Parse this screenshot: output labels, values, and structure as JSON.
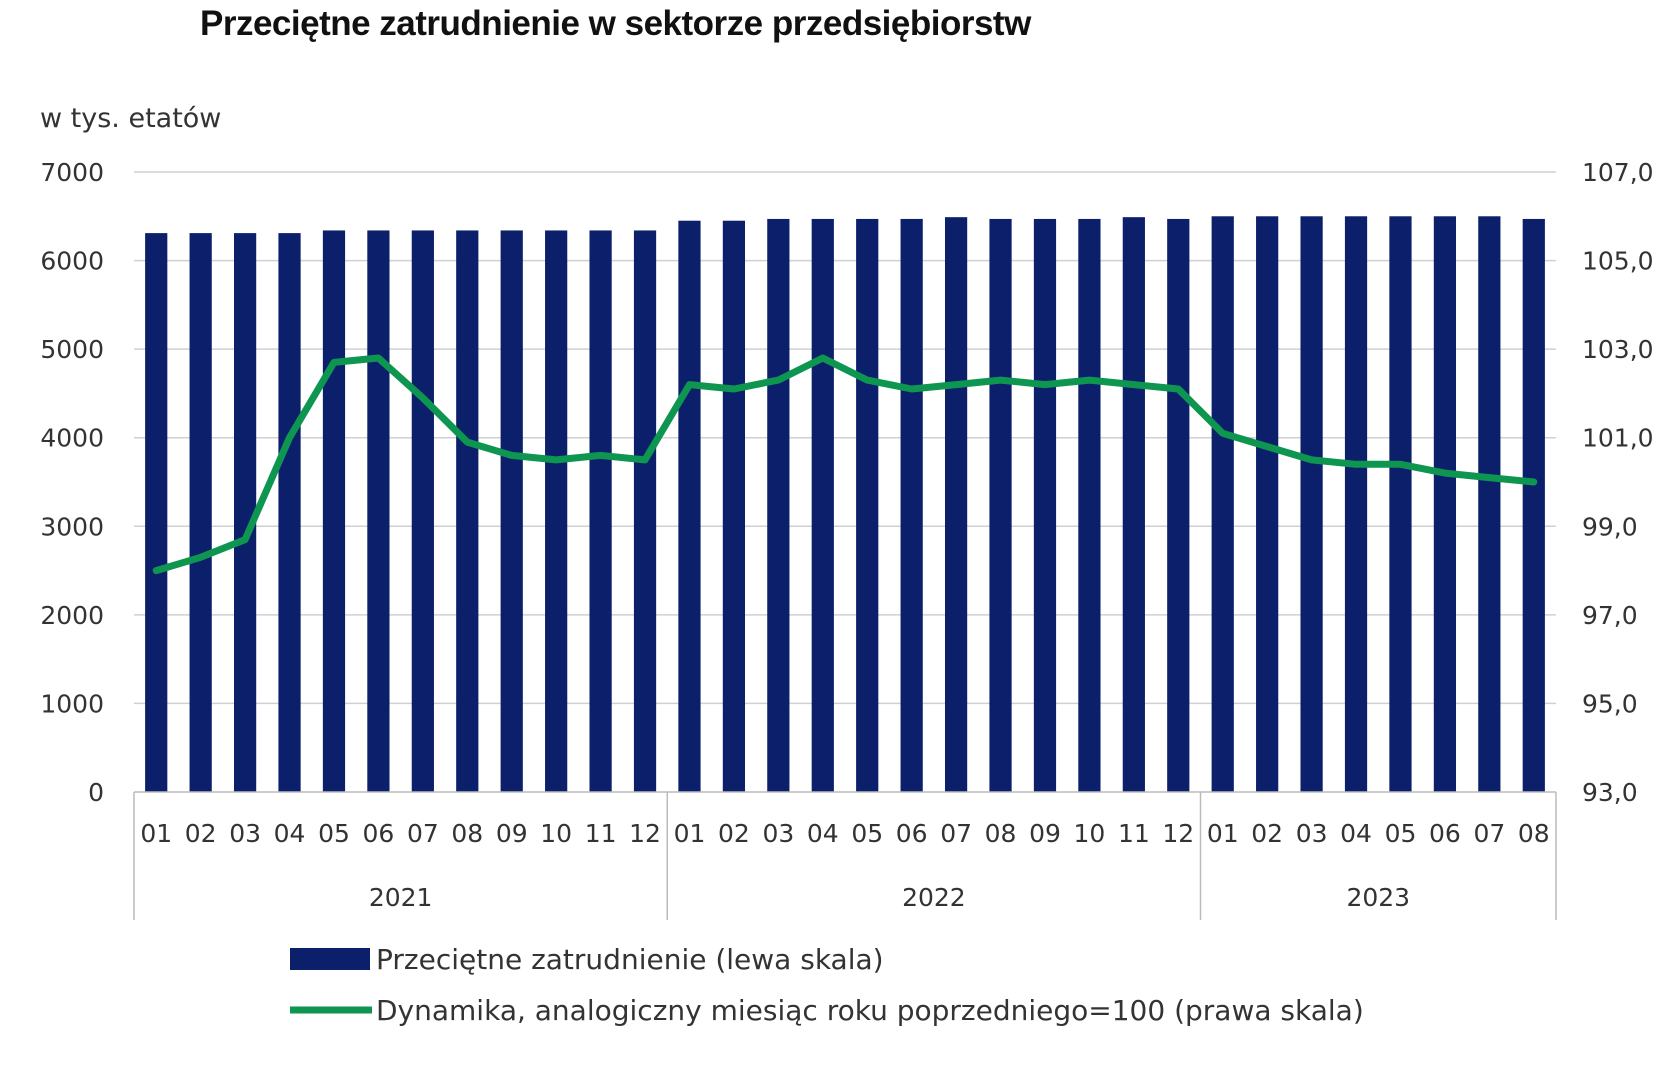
{
  "chart_data": {
    "type": "bar",
    "title": "Przeciętne zatrudnienie w sektorze przedsiębiorstw",
    "ylabel_left": "w tys. etatów",
    "ylim_left": [
      0,
      7000
    ],
    "yticks_left": [
      "0",
      "1000",
      "2000",
      "3000",
      "4000",
      "5000",
      "6000",
      "7000"
    ],
    "ylim_right": [
      93,
      107
    ],
    "yticks_right": [
      "93,0",
      "95,0",
      "97,0",
      "99,0",
      "101,0",
      "103,0",
      "105,0",
      "107,0"
    ],
    "grid": true,
    "legend_position": "bottom",
    "years": [
      {
        "label": "2021",
        "start": 0,
        "count": 12
      },
      {
        "label": "2022",
        "start": 12,
        "count": 12
      },
      {
        "label": "2023",
        "start": 24,
        "count": 8
      }
    ],
    "categories": [
      "01",
      "02",
      "03",
      "04",
      "05",
      "06",
      "07",
      "08",
      "09",
      "10",
      "11",
      "12",
      "01",
      "02",
      "03",
      "04",
      "05",
      "06",
      "07",
      "08",
      "09",
      "10",
      "11",
      "12",
      "01",
      "02",
      "03",
      "04",
      "05",
      "06",
      "07",
      "08"
    ],
    "series": [
      {
        "name": "Przeciętne zatrudnienie (lewa skala)",
        "type": "bar",
        "axis": "left",
        "color": "#0b1f6b",
        "values": [
          6310,
          6310,
          6310,
          6310,
          6340,
          6340,
          6340,
          6340,
          6340,
          6340,
          6340,
          6340,
          6450,
          6450,
          6470,
          6470,
          6470,
          6470,
          6490,
          6470,
          6470,
          6470,
          6490,
          6470,
          6500,
          6500,
          6500,
          6500,
          6500,
          6500,
          6500,
          6470
        ]
      },
      {
        "name": "Dynamika, analogiczny miesiąc roku poprzedniego=100 (prawa skala)",
        "type": "line",
        "axis": "right",
        "color": "#0e9650",
        "values": [
          98.0,
          98.3,
          98.7,
          101.0,
          102.7,
          102.8,
          101.9,
          100.9,
          100.6,
          100.5,
          100.6,
          100.5,
          102.2,
          102.1,
          102.3,
          102.8,
          102.3,
          102.1,
          102.2,
          102.3,
          102.2,
          102.3,
          102.2,
          102.1,
          101.1,
          100.8,
          100.5,
          100.4,
          100.4,
          100.2,
          100.1,
          100.0
        ]
      }
    ]
  }
}
